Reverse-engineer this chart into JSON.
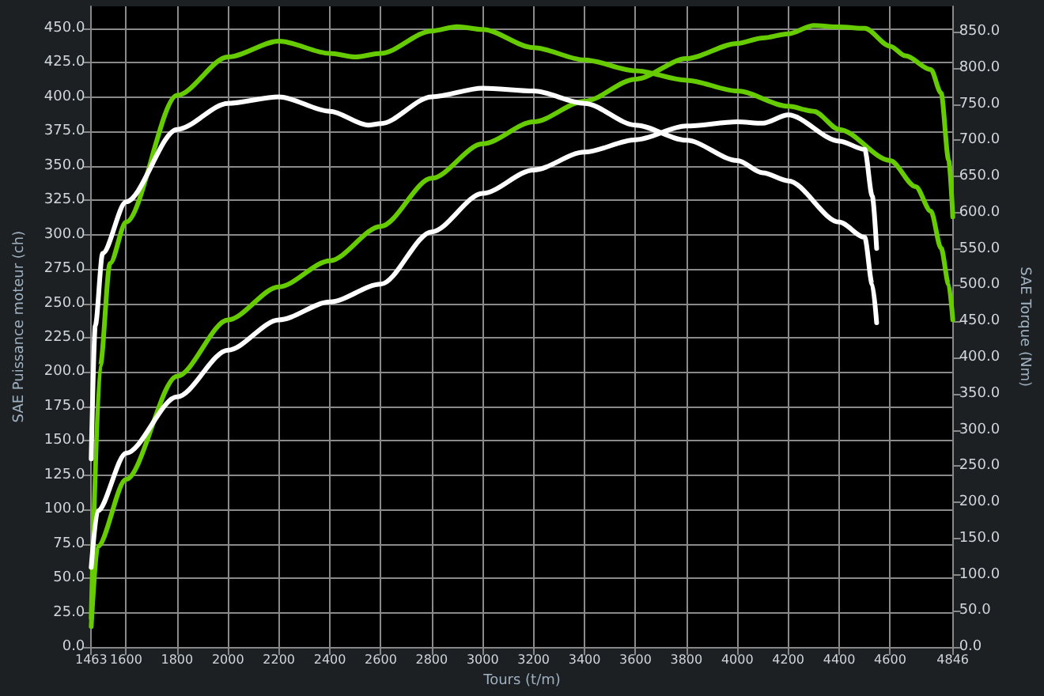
{
  "chart_data": {
    "type": "line",
    "xlabel": "Tours (t/m)",
    "ylabel": "SAE Puissance moteur (ch)",
    "y2label": "SAE Torque (Nm)",
    "xlim": [
      1463,
      4846
    ],
    "xticks": [
      1463,
      1600,
      1800,
      2000,
      2200,
      2400,
      2600,
      2800,
      3000,
      3200,
      3400,
      3600,
      3800,
      4000,
      4200,
      4400,
      4600,
      4846
    ],
    "ylim": [
      0,
      466
    ],
    "yticks": [
      {
        "value": 0,
        "label": "0.0"
      },
      {
        "value": 25,
        "label": "25.0"
      },
      {
        "value": 50,
        "label": "50.0"
      },
      {
        "value": 75,
        "label": "75.0"
      },
      {
        "value": 100,
        "label": "100.0"
      },
      {
        "value": 125,
        "label": "125.0"
      },
      {
        "value": 150,
        "label": "150.0"
      },
      {
        "value": 175,
        "label": "175.0"
      },
      {
        "value": 200,
        "label": "200.0"
      },
      {
        "value": 225,
        "label": "225.0"
      },
      {
        "value": 250,
        "label": "250.0"
      },
      {
        "value": 275,
        "label": "275.0"
      },
      {
        "value": 300,
        "label": "300.0"
      },
      {
        "value": 325,
        "label": "325.0"
      },
      {
        "value": 350,
        "label": "350.0"
      },
      {
        "value": 375,
        "label": "375.0"
      },
      {
        "value": 400,
        "label": "400.0"
      },
      {
        "value": 425,
        "label": "425.0"
      },
      {
        "value": 450,
        "label": "450.0"
      }
    ],
    "y2lim": [
      0,
      885
    ],
    "y2ticks": [
      {
        "value": 0,
        "label": "0.0"
      },
      {
        "value": 50,
        "label": "50.0"
      },
      {
        "value": 100,
        "label": "100.0"
      },
      {
        "value": 150,
        "label": "150.0"
      },
      {
        "value": 200,
        "label": "200.0"
      },
      {
        "value": 250,
        "label": "250.0"
      },
      {
        "value": 300,
        "label": "300.0"
      },
      {
        "value": 350,
        "label": "350.0"
      },
      {
        "value": 400,
        "label": "400.0"
      },
      {
        "value": 450,
        "label": "450.0"
      },
      {
        "value": 500,
        "label": "500.0"
      },
      {
        "value": 550,
        "label": "550.0"
      },
      {
        "value": 600,
        "label": "600.0"
      },
      {
        "value": 650,
        "label": "650.0"
      },
      {
        "value": 700,
        "label": "700.0"
      },
      {
        "value": 750,
        "label": "750.0"
      },
      {
        "value": 800,
        "label": "800.0"
      },
      {
        "value": 850,
        "label": "850.0"
      }
    ],
    "grid": true,
    "marker": "none",
    "line_style": "solid",
    "series": [
      {
        "color": "#66cc00",
        "axis": "y2",
        "x": [
          1463,
          1498,
          1537,
          1600,
          1800,
          2000,
          2200,
          2400,
          2500,
          2600,
          2800,
          2900,
          3000,
          3200,
          3400,
          3600,
          3800,
          4000,
          4200,
          4300,
          4400,
          4600,
          4700,
          4760,
          4800,
          4830,
          4846
        ],
        "values": [
          40,
          388,
          530,
          587,
          762,
          815,
          837,
          820,
          815,
          820,
          851,
          857,
          853,
          828,
          811,
          796,
          783,
          768,
          747,
          740,
          715,
          672,
          636,
          602,
          551,
          501,
          452
        ]
      },
      {
        "color": "#66cc00",
        "x": [
          1463,
          1488,
          1600,
          1800,
          2000,
          2200,
          2400,
          2600,
          2800,
          3000,
          3200,
          3400,
          3600,
          3800,
          4000,
          4100,
          4200,
          4300,
          4400,
          4500,
          4600,
          4660,
          4760,
          4800,
          4830,
          4846
        ],
        "values": [
          15,
          73,
          122,
          197,
          238,
          262,
          281,
          306,
          341,
          366,
          382,
          397,
          413,
          428,
          439,
          443,
          446,
          452,
          451,
          450,
          437,
          430,
          420,
          403,
          354,
          313
        ]
      },
      {
        "color": "#ffffff",
        "axis": "y2",
        "x": [
          1463,
          1479,
          1508,
          1600,
          1800,
          2000,
          2200,
          2400,
          2550,
          2600,
          2800,
          3000,
          3200,
          3400,
          3600,
          3800,
          4000,
          4100,
          4200,
          4400,
          4500,
          4530,
          4547
        ],
        "values": [
          260,
          444,
          544,
          615,
          715,
          751,
          760,
          740,
          721,
          723,
          760,
          772,
          768,
          751,
          721,
          700,
          672,
          655,
          644,
          587,
          566,
          501,
          448
        ]
      },
      {
        "color": "#ffffff",
        "x": [
          1463,
          1488,
          1600,
          1800,
          2000,
          2200,
          2400,
          2600,
          2800,
          3000,
          3200,
          3400,
          3600,
          3800,
          4000,
          4100,
          4200,
          4400,
          4500,
          4530,
          4547
        ],
        "values": [
          58,
          99,
          141,
          182,
          216,
          238,
          251,
          264,
          302,
          330,
          347,
          360,
          369,
          379,
          382,
          381,
          387,
          368,
          362,
          328,
          290
        ]
      }
    ]
  }
}
